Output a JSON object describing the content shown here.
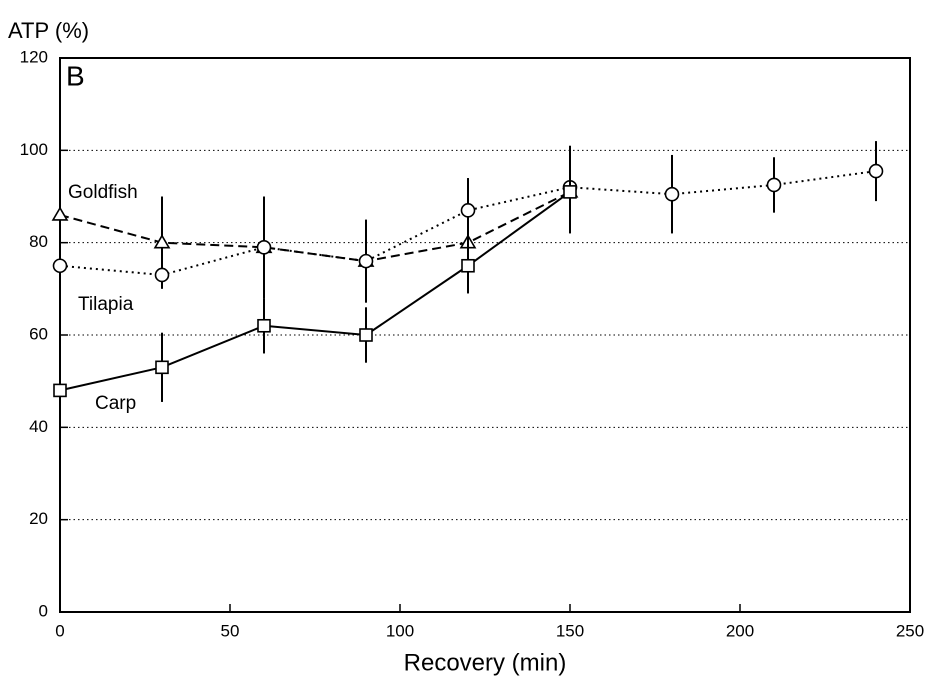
{
  "chart_data": {
    "type": "line",
    "panel_label": "B",
    "ylabel": "ATP (%)",
    "xlabel": "Recovery (min)",
    "xlim": [
      0,
      250
    ],
    "xticks": [
      0,
      50,
      100,
      150,
      200,
      250
    ],
    "ylim": [
      0,
      120
    ],
    "yticks": [
      0,
      20,
      40,
      60,
      80,
      100,
      120
    ],
    "grid": true,
    "series": [
      {
        "name": "Goldfish",
        "color": "#000000",
        "line_style": "dashed",
        "marker": "triangle",
        "x": [
          0,
          30,
          60,
          90,
          120,
          150
        ],
        "values": [
          86,
          80,
          79,
          76,
          80,
          91
        ],
        "errors": [
          5,
          10,
          11,
          9,
          7,
          null
        ]
      },
      {
        "name": "Tilapia",
        "color": "#000000",
        "line_style": "dotted",
        "marker": "circle",
        "x": [
          0,
          30,
          60,
          90,
          120,
          150,
          180,
          210,
          240
        ],
        "values": [
          75,
          73,
          79,
          76,
          87,
          92,
          90.5,
          92.5,
          95.5
        ],
        "errors": [
          null,
          null,
          null,
          null,
          7,
          9,
          8.5,
          6,
          6.5
        ]
      },
      {
        "name": "Carp",
        "color": "#000000",
        "line_style": "solid",
        "marker": "square",
        "x": [
          0,
          30,
          60,
          90,
          120,
          150
        ],
        "values": [
          48,
          53,
          62,
          60,
          75,
          91
        ],
        "errors": [
          null,
          7.5,
          6,
          6,
          6,
          9
        ]
      }
    ]
  }
}
